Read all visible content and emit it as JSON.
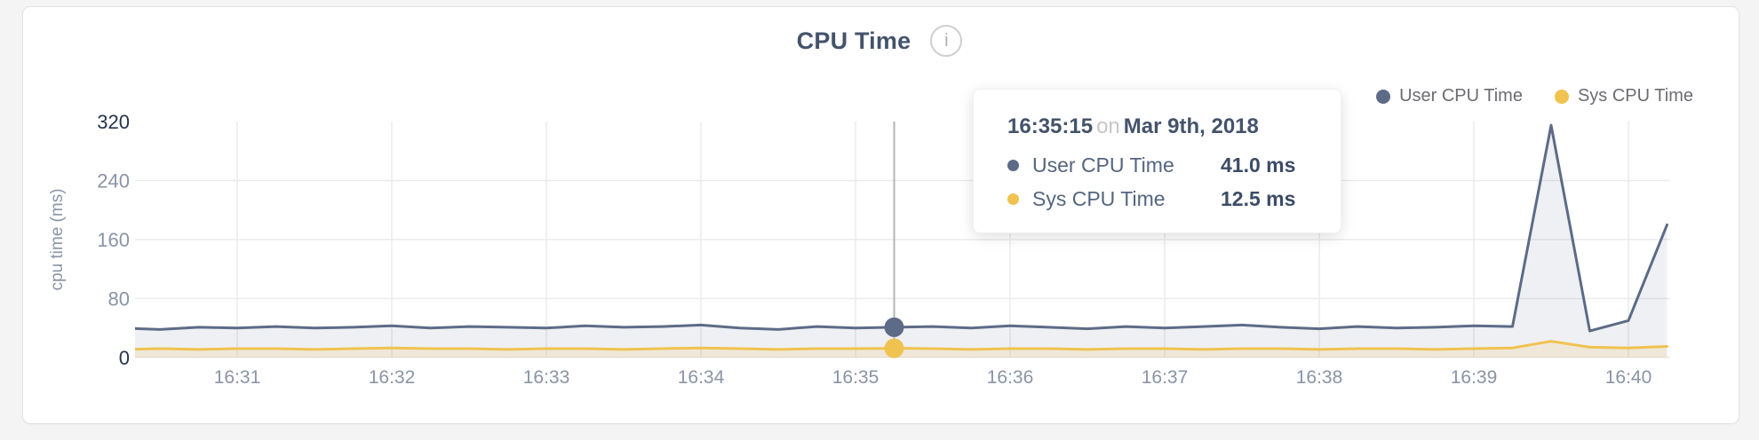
{
  "header": {
    "title": "CPU Time",
    "info_glyph": "i"
  },
  "legend": {
    "items": [
      {
        "label": "User CPU Time",
        "color": "#5d6b87"
      },
      {
        "label": "Sys CPU Time",
        "color": "#f0c24f"
      }
    ]
  },
  "tooltip": {
    "time": "16:35:15",
    "connector": "on",
    "date": "Mar 9th, 2018",
    "rows": [
      {
        "label": "User CPU Time",
        "value": "41.0 ms",
        "color": "#5d6b87"
      },
      {
        "label": "Sys CPU Time",
        "value": "12.5 ms",
        "color": "#f0c24f"
      }
    ]
  },
  "chart_data": {
    "type": "area",
    "title": "CPU Time",
    "ylabel": "cpu time (ms)",
    "ylim": [
      0,
      320
    ],
    "grid": true,
    "legend_position": "top-right",
    "interval_seconds": 15,
    "x_ticks": [
      "16:31",
      "16:32",
      "16:33",
      "16:34",
      "16:35",
      "16:36",
      "16:37",
      "16:38",
      "16:39",
      "16:40"
    ],
    "y_ticks": [
      {
        "value": 320,
        "label": "320",
        "strong": true,
        "grid": false
      },
      {
        "value": 240,
        "label": "240",
        "strong": false,
        "grid": true
      },
      {
        "value": 160,
        "label": "160",
        "strong": false,
        "grid": true
      },
      {
        "value": 80,
        "label": "80",
        "strong": false,
        "grid": true
      },
      {
        "value": 0,
        "label": "0",
        "strong": true,
        "grid": true
      }
    ],
    "times": [
      "16:30:15",
      "16:30:30",
      "16:30:45",
      "16:31:00",
      "16:31:15",
      "16:31:30",
      "16:31:45",
      "16:32:00",
      "16:32:15",
      "16:32:30",
      "16:32:45",
      "16:33:00",
      "16:33:15",
      "16:33:30",
      "16:33:45",
      "16:34:00",
      "16:34:15",
      "16:34:30",
      "16:34:45",
      "16:35:00",
      "16:35:15",
      "16:35:30",
      "16:35:45",
      "16:36:00",
      "16:36:15",
      "16:36:30",
      "16:36:45",
      "16:37:00",
      "16:37:15",
      "16:37:30",
      "16:37:45",
      "16:38:00",
      "16:38:15",
      "16:38:30",
      "16:38:45",
      "16:39:00",
      "16:39:15",
      "16:39:30",
      "16:39:45",
      "16:40:00",
      "16:40:15"
    ],
    "series": [
      {
        "name": "User CPU Time",
        "color": "#5d6b87",
        "fill": "rgba(99,112,139,0.10)",
        "values": [
          40,
          38,
          41,
          40,
          42,
          40,
          41,
          43,
          40,
          42,
          41,
          40,
          43,
          41,
          42,
          44,
          40,
          38,
          42,
          40,
          41,
          42,
          40,
          43,
          41,
          39,
          42,
          40,
          42,
          44,
          41,
          39,
          42,
          40,
          41,
          43,
          42,
          315,
          36,
          50,
          180
        ]
      },
      {
        "name": "Sys CPU Time",
        "color": "#f0c24f",
        "fill": "rgba(240,194,79,0.16)",
        "values": [
          11,
          12,
          11,
          12,
          12,
          11,
          12,
          13,
          12,
          12,
          11,
          12,
          12,
          11,
          12,
          13,
          12,
          11,
          12,
          12,
          12.5,
          12,
          11,
          12,
          12,
          11,
          12,
          12,
          11,
          12,
          12,
          11,
          12,
          12,
          11,
          12,
          13,
          22,
          14,
          13,
          15
        ]
      }
    ],
    "hover": {
      "index": 20,
      "time": "16:35:15",
      "user_ms": 41.0,
      "sys_ms": 12.5
    }
  }
}
